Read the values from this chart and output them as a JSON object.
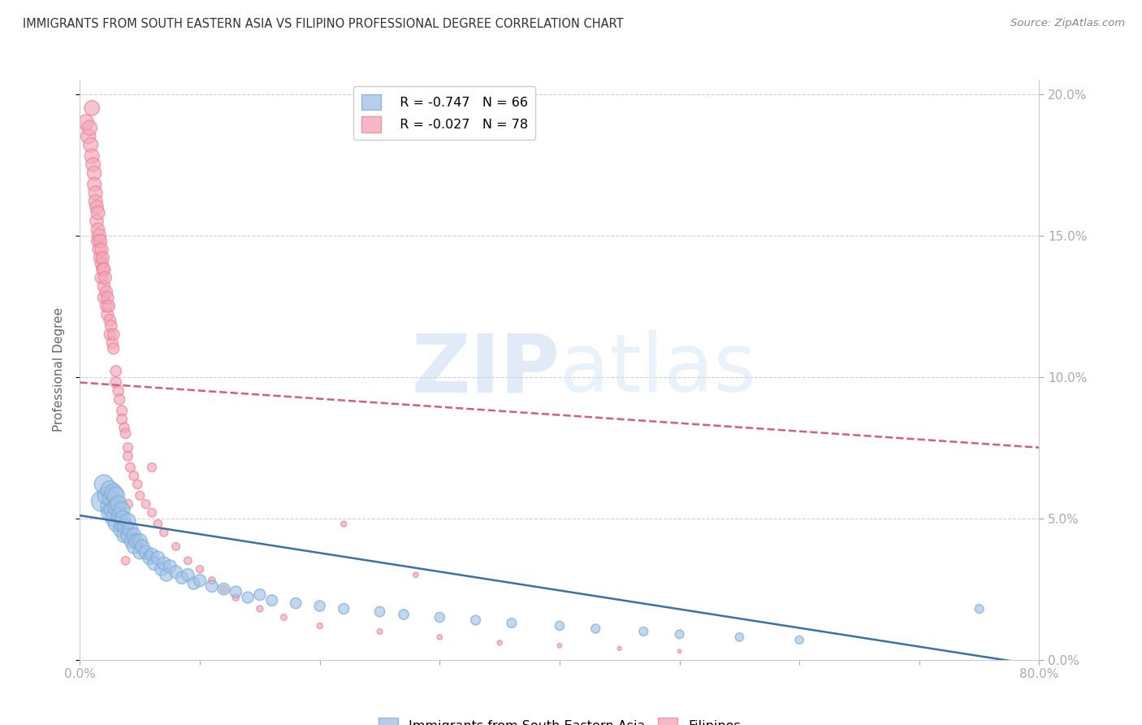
{
  "title": "IMMIGRANTS FROM SOUTH EASTERN ASIA VS FILIPINO PROFESSIONAL DEGREE CORRELATION CHART",
  "source": "Source: ZipAtlas.com",
  "ylabel": "Professional Degree",
  "xmin": 0.0,
  "xmax": 0.8,
  "ymin": 0.0,
  "ymax": 0.205,
  "yticks": [
    0.0,
    0.05,
    0.1,
    0.15,
    0.2
  ],
  "ytick_labels": [
    "0.0%",
    "5.0%",
    "10.0%",
    "15.0%",
    "20.0%"
  ],
  "xticks": [
    0.0,
    0.1,
    0.2,
    0.3,
    0.4,
    0.5,
    0.6,
    0.7,
    0.8
  ],
  "xtick_labels": [
    "0.0%",
    "",
    "",
    "",
    "",
    "",
    "",
    "",
    "80.0%"
  ],
  "legend_blue_r": "R = -0.747",
  "legend_blue_n": "N = 66",
  "legend_pink_r": "R = -0.027",
  "legend_pink_n": "N = 78",
  "blue_color": "#a4c2e8",
  "pink_color": "#f4a7b9",
  "blue_edge_color": "#7badd4",
  "pink_edge_color": "#e8859a",
  "blue_line_color": "#3d6fa8",
  "pink_line_color": "#d45f78",
  "watermark_zip": "ZIP",
  "watermark_atlas": "atlas",
  "blue_scatter_x": [
    0.018,
    0.02,
    0.022,
    0.024,
    0.025,
    0.025,
    0.026,
    0.027,
    0.028,
    0.028,
    0.03,
    0.03,
    0.03,
    0.032,
    0.033,
    0.034,
    0.035,
    0.035,
    0.036,
    0.037,
    0.038,
    0.04,
    0.04,
    0.042,
    0.043,
    0.045,
    0.045,
    0.047,
    0.05,
    0.05,
    0.052,
    0.055,
    0.058,
    0.06,
    0.062,
    0.065,
    0.068,
    0.07,
    0.072,
    0.075,
    0.08,
    0.085,
    0.09,
    0.095,
    0.1,
    0.11,
    0.12,
    0.13,
    0.14,
    0.15,
    0.16,
    0.18,
    0.2,
    0.22,
    0.25,
    0.27,
    0.3,
    0.33,
    0.36,
    0.4,
    0.43,
    0.47,
    0.5,
    0.55,
    0.6,
    0.75
  ],
  "blue_scatter_y": [
    0.056,
    0.062,
    0.058,
    0.054,
    0.06,
    0.052,
    0.057,
    0.053,
    0.059,
    0.05,
    0.058,
    0.054,
    0.048,
    0.055,
    0.051,
    0.046,
    0.053,
    0.048,
    0.05,
    0.044,
    0.047,
    0.049,
    0.044,
    0.046,
    0.042,
    0.044,
    0.04,
    0.042,
    0.042,
    0.038,
    0.04,
    0.038,
    0.036,
    0.037,
    0.034,
    0.036,
    0.032,
    0.034,
    0.03,
    0.033,
    0.031,
    0.029,
    0.03,
    0.027,
    0.028,
    0.026,
    0.025,
    0.024,
    0.022,
    0.023,
    0.021,
    0.02,
    0.019,
    0.018,
    0.017,
    0.016,
    0.015,
    0.014,
    0.013,
    0.012,
    0.011,
    0.01,
    0.009,
    0.008,
    0.007,
    0.018
  ],
  "blue_scatter_size": [
    320,
    280,
    240,
    200,
    260,
    220,
    230,
    210,
    250,
    200,
    240,
    210,
    180,
    220,
    200,
    175,
    200,
    180,
    190,
    170,
    180,
    190,
    165,
    175,
    160,
    165,
    150,
    155,
    160,
    145,
    150,
    145,
    140,
    145,
    135,
    140,
    130,
    135,
    125,
    130,
    125,
    120,
    120,
    115,
    115,
    110,
    108,
    105,
    100,
    100,
    95,
    90,
    88,
    85,
    80,
    78,
    75,
    72,
    70,
    65,
    62,
    60,
    58,
    55,
    52,
    60
  ],
  "pink_scatter_x": [
    0.005,
    0.007,
    0.008,
    0.009,
    0.01,
    0.01,
    0.011,
    0.012,
    0.012,
    0.013,
    0.013,
    0.014,
    0.014,
    0.015,
    0.015,
    0.015,
    0.016,
    0.016,
    0.017,
    0.017,
    0.018,
    0.018,
    0.018,
    0.019,
    0.019,
    0.02,
    0.02,
    0.02,
    0.021,
    0.022,
    0.022,
    0.023,
    0.023,
    0.024,
    0.025,
    0.025,
    0.026,
    0.027,
    0.028,
    0.028,
    0.03,
    0.03,
    0.032,
    0.033,
    0.035,
    0.035,
    0.037,
    0.038,
    0.04,
    0.04,
    0.042,
    0.045,
    0.048,
    0.05,
    0.055,
    0.06,
    0.065,
    0.07,
    0.08,
    0.09,
    0.1,
    0.11,
    0.12,
    0.13,
    0.15,
    0.17,
    0.2,
    0.25,
    0.3,
    0.35,
    0.4,
    0.45,
    0.5,
    0.22,
    0.28,
    0.04,
    0.038,
    0.06
  ],
  "pink_scatter_y": [
    0.19,
    0.185,
    0.188,
    0.182,
    0.178,
    0.195,
    0.175,
    0.172,
    0.168,
    0.165,
    0.162,
    0.16,
    0.155,
    0.158,
    0.152,
    0.148,
    0.15,
    0.145,
    0.148,
    0.142,
    0.145,
    0.14,
    0.135,
    0.142,
    0.138,
    0.138,
    0.132,
    0.128,
    0.135,
    0.13,
    0.125,
    0.128,
    0.122,
    0.125,
    0.12,
    0.115,
    0.118,
    0.112,
    0.115,
    0.11,
    0.102,
    0.098,
    0.095,
    0.092,
    0.088,
    0.085,
    0.082,
    0.08,
    0.075,
    0.072,
    0.068,
    0.065,
    0.062,
    0.058,
    0.055,
    0.052,
    0.048,
    0.045,
    0.04,
    0.035,
    0.032,
    0.028,
    0.025,
    0.022,
    0.018,
    0.015,
    0.012,
    0.01,
    0.008,
    0.006,
    0.005,
    0.004,
    0.003,
    0.048,
    0.03,
    0.055,
    0.035,
    0.068
  ],
  "pink_scatter_size": [
    180,
    170,
    175,
    165,
    165,
    175,
    160,
    155,
    150,
    148,
    145,
    142,
    138,
    145,
    140,
    135,
    138,
    132,
    135,
    130,
    132,
    128,
    125,
    130,
    126,
    128,
    122,
    118,
    124,
    120,
    115,
    118,
    112,
    115,
    110,
    105,
    108,
    102,
    105,
    100,
    95,
    92,
    90,
    88,
    85,
    82,
    80,
    78,
    75,
    72,
    70,
    68,
    65,
    62,
    60,
    58,
    55,
    52,
    48,
    45,
    42,
    40,
    38,
    35,
    32,
    28,
    25,
    22,
    20,
    18,
    15,
    12,
    10,
    25,
    20,
    70,
    55,
    62
  ],
  "pink_line_x_start": 0.0,
  "pink_line_x_end": 0.8,
  "pink_line_y_start": 0.098,
  "pink_line_y_end": 0.075,
  "blue_line_x_start": 0.0,
  "blue_line_x_end": 0.8,
  "blue_line_y_start": 0.051,
  "blue_line_y_end": -0.002
}
